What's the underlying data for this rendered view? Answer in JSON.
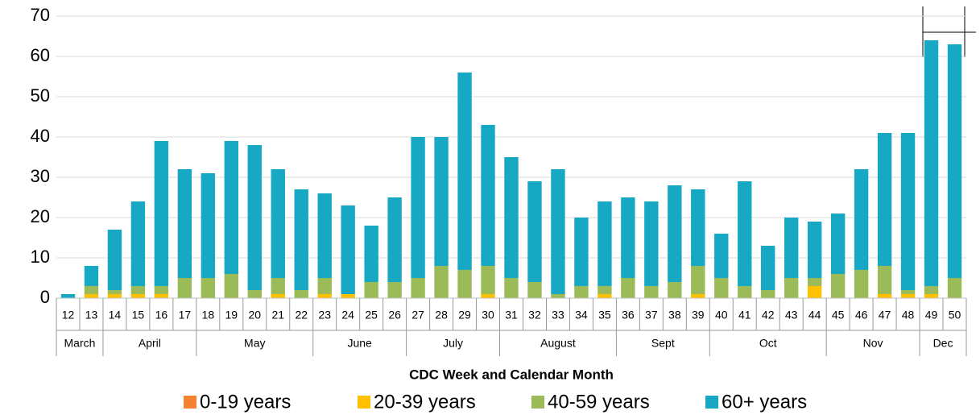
{
  "chart_data": {
    "type": "stacked_bar",
    "x_label": "CDC Week and Calendar Month",
    "months": [
      {
        "name": "March",
        "weeks": [
          "12",
          "13"
        ]
      },
      {
        "name": "April",
        "weeks": [
          "14",
          "15",
          "16",
          "17"
        ]
      },
      {
        "name": "May",
        "weeks": [
          "18",
          "19",
          "20",
          "21",
          "22"
        ]
      },
      {
        "name": "June",
        "weeks": [
          "23",
          "24",
          "25",
          "26"
        ]
      },
      {
        "name": "July",
        "weeks": [
          "27",
          "28",
          "29",
          "30"
        ]
      },
      {
        "name": "August",
        "weeks": [
          "31",
          "32",
          "33",
          "34",
          "35"
        ]
      },
      {
        "name": "Sept",
        "weeks": [
          "36",
          "37",
          "38",
          "39"
        ]
      },
      {
        "name": "Oct",
        "weeks": [
          "40",
          "41",
          "42",
          "43",
          "44"
        ]
      },
      {
        "name": "Nov",
        "weeks": [
          "45",
          "46",
          "47",
          "48"
        ]
      },
      {
        "name": "Dec",
        "weeks": [
          "49",
          "50"
        ]
      }
    ],
    "series": [
      {
        "name": "0-19 years",
        "color": "#f58232",
        "values": [
          0,
          0,
          0,
          0,
          0,
          0,
          0,
          0,
          0,
          0,
          0,
          0,
          0,
          0,
          0,
          0,
          0,
          0,
          0,
          0,
          0,
          0,
          0,
          0,
          0,
          0,
          0,
          0,
          0,
          0,
          0,
          0,
          0,
          0,
          0,
          0,
          0,
          0,
          0
        ]
      },
      {
        "name": "20-39 years",
        "color": "#ffc000",
        "values": [
          0,
          1,
          1,
          1,
          1,
          0,
          0,
          0,
          0,
          1,
          0,
          1,
          1,
          0,
          0,
          0,
          0,
          0,
          1,
          0,
          0,
          0,
          0,
          1,
          0,
          0,
          0,
          1,
          0,
          0,
          0,
          0,
          3,
          0,
          0,
          1,
          1,
          1,
          0
        ]
      },
      {
        "name": "40-59 years",
        "color": "#9bbb59",
        "values": [
          0,
          2,
          1,
          2,
          2,
          5,
          5,
          6,
          2,
          4,
          2,
          4,
          0,
          4,
          4,
          5,
          8,
          7,
          7,
          5,
          4,
          1,
          3,
          2,
          5,
          3,
          4,
          7,
          5,
          3,
          2,
          5,
          2,
          6,
          7,
          7,
          1,
          2,
          5
        ]
      },
      {
        "name": "60+ years",
        "color": "#17a8c4",
        "values": [
          1,
          5,
          15,
          21,
          36,
          27,
          26,
          33,
          36,
          27,
          25,
          21,
          22,
          14,
          21,
          35,
          32,
          49,
          35,
          30,
          25,
          31,
          17,
          21,
          20,
          21,
          24,
          19,
          11,
          26,
          11,
          15,
          14,
          15,
          25,
          33,
          39,
          61,
          58
        ]
      }
    ],
    "ylim": [
      0,
      70
    ],
    "yticks": [
      0,
      10,
      20,
      30,
      40,
      50,
      60,
      70
    ],
    "grid": true
  }
}
